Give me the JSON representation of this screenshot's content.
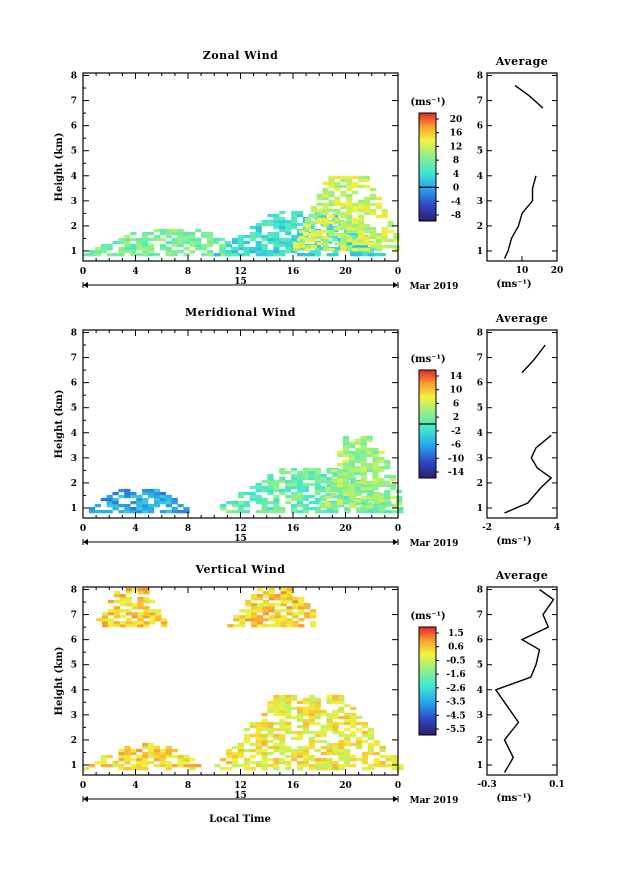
{
  "figure": {
    "x_label": "Local Time",
    "y_label": "Height (km)",
    "date_label": "15",
    "month_label": "Mar 2019",
    "unit_label": "(ms⁻¹)",
    "average_title": "Average"
  },
  "chart_data": [
    {
      "type": "heatmap",
      "title": "Zonal Wind",
      "x_ticks": [
        "0",
        "4",
        "8",
        "12",
        "16",
        "20",
        "0"
      ],
      "xlim": [
        0,
        24
      ],
      "y_ticks": [
        "1",
        "2",
        "3",
        "4",
        "5",
        "6",
        "7",
        "8"
      ],
      "ylim": [
        0.6,
        8.1
      ],
      "colorbar": {
        "ticks": [
          "20",
          "16",
          "12",
          "8",
          "4",
          "0",
          "-4",
          "-8"
        ],
        "range": [
          -10,
          22
        ],
        "zero": 0
      },
      "data_regions": [
        {
          "x": [
            0,
            13
          ],
          "y": [
            0.8,
            1.8
          ],
          "mean": 8
        },
        {
          "x": [
            10,
            23
          ],
          "y": [
            0.8,
            2.5
          ],
          "mean": 4
        },
        {
          "x": [
            16,
            24
          ],
          "y": [
            1.0,
            4.0
          ],
          "mean": 12
        }
      ],
      "average": {
        "xlim": [
          0,
          20
        ],
        "x_ticks": [
          "10",
          "20"
        ],
        "y": [
          0.7,
          1.0,
          1.5,
          2.0,
          2.5,
          3.0,
          3.5,
          4.0,
          6.7,
          7.2,
          7.6
        ],
        "x": [
          5,
          6,
          7,
          9,
          10,
          13,
          13,
          14,
          16,
          12,
          8
        ]
      }
    },
    {
      "type": "heatmap",
      "title": "Meridional Wind",
      "x_ticks": [
        "0",
        "4",
        "8",
        "12",
        "16",
        "20",
        "0"
      ],
      "xlim": [
        0,
        24
      ],
      "y_ticks": [
        "1",
        "2",
        "3",
        "4",
        "5",
        "6",
        "7",
        "8"
      ],
      "ylim": [
        0.6,
        8.1
      ],
      "colorbar": {
        "ticks": [
          "14",
          "10",
          "6",
          "2",
          "-2",
          "-6",
          "-10",
          "-14"
        ],
        "range": [
          -16,
          16
        ],
        "zero": 0
      },
      "data_regions": [
        {
          "x": [
            0,
            8
          ],
          "y": [
            0.8,
            1.7
          ],
          "mean": -6
        },
        {
          "x": [
            10,
            24
          ],
          "y": [
            0.8,
            2.5
          ],
          "mean": 1
        },
        {
          "x": [
            18,
            24
          ],
          "y": [
            1.0,
            3.8
          ],
          "mean": 4
        }
      ],
      "average": {
        "xlim": [
          -2,
          4
        ],
        "x_ticks": [
          "-2",
          "4"
        ],
        "y": [
          0.8,
          1.2,
          1.8,
          2.2,
          2.6,
          3.0,
          3.4,
          3.9,
          6.4,
          6.9,
          7.5
        ],
        "x": [
          -0.5,
          1.5,
          2.6,
          3.5,
          2.3,
          1.8,
          2.2,
          3.5,
          1,
          2,
          3
        ]
      }
    },
    {
      "type": "heatmap",
      "title": "Vertical Wind",
      "x_ticks": [
        "0",
        "4",
        "8",
        "12",
        "16",
        "20",
        "0"
      ],
      "xlim": [
        0,
        24
      ],
      "y_ticks": [
        "1",
        "2",
        "3",
        "4",
        "5",
        "6",
        "7",
        "8"
      ],
      "ylim": [
        0.6,
        8.1
      ],
      "colorbar": {
        "ticks": [
          "1.5",
          "0.6",
          "-0.5",
          "-1.6",
          "-2.6",
          "-3.5",
          "-4.5",
          "-5.5"
        ],
        "range": [
          -6,
          2
        ],
        "zero": null
      },
      "data_regions": [
        {
          "x": [
            0,
            9
          ],
          "y": [
            0.8,
            1.8
          ],
          "mean": 0.3
        },
        {
          "x": [
            10,
            24
          ],
          "y": [
            0.8,
            3.8
          ],
          "mean": 0
        },
        {
          "x": [
            1,
            6
          ],
          "y": [
            6.5,
            8.0
          ],
          "mean": 0.4
        },
        {
          "x": [
            11,
            18
          ],
          "y": [
            6.5,
            8.0
          ],
          "mean": 0.4
        }
      ],
      "average": {
        "xlim": [
          -0.3,
          0.1
        ],
        "x_ticks": [
          "-0.3",
          "0.1"
        ],
        "y": [
          0.7,
          1.3,
          2.0,
          2.7,
          3.3,
          4.0,
          4.5,
          5.0,
          5.6,
          6.0,
          6.5,
          7.0,
          7.6,
          8.0
        ],
        "x": [
          -0.2,
          -0.15,
          -0.2,
          -0.12,
          -0.18,
          -0.25,
          -0.05,
          -0.02,
          0.0,
          -0.1,
          0.05,
          0.02,
          0.08,
          0.0
        ]
      }
    }
  ]
}
